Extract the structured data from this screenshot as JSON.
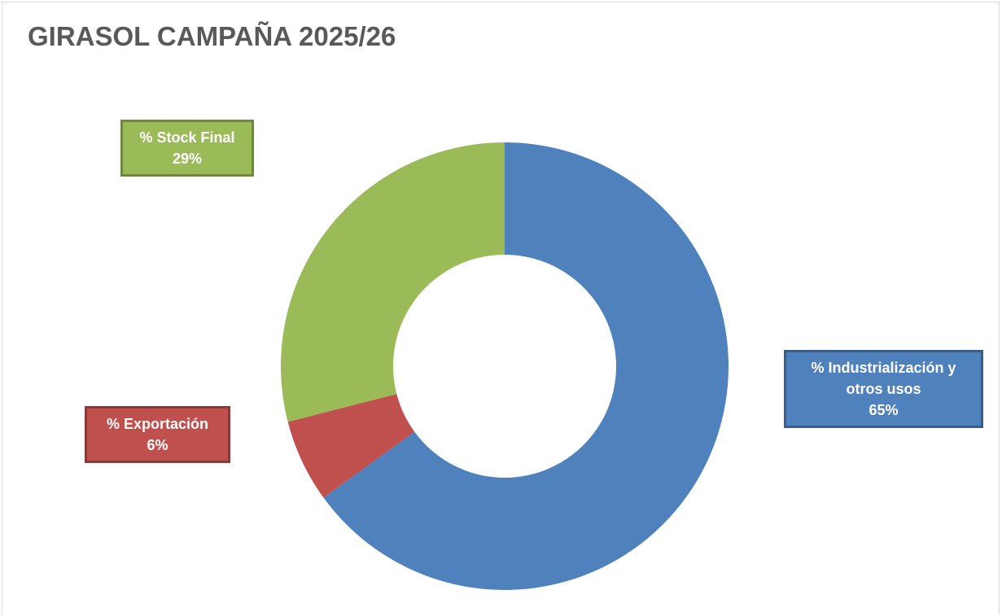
{
  "chart_data": {
    "type": "donut",
    "title": "GIRASOL CAMPAÑA 2025/26",
    "categories": [
      "% Industrialización y otros usos",
      "% Exportación",
      "% Stock Final"
    ],
    "values": [
      65,
      6,
      29
    ],
    "value_labels": [
      "65%",
      "6%",
      "29%"
    ],
    "colors": [
      "#4f81bd",
      "#c0504d",
      "#9bbb59"
    ]
  }
}
